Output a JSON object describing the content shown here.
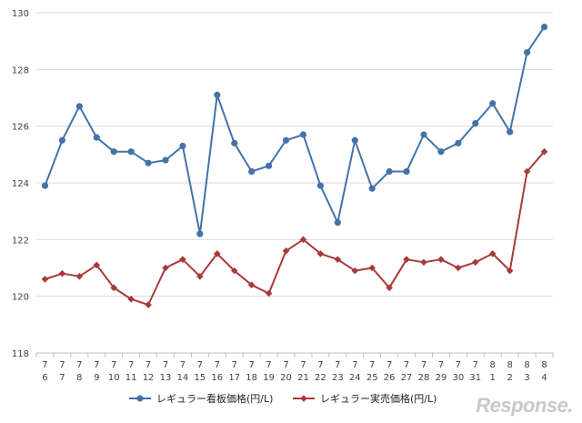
{
  "chart_data": {
    "type": "line",
    "title": "",
    "xlabel": "",
    "ylabel": "",
    "ylim": [
      118,
      130
    ],
    "yticks": [
      118,
      120,
      122,
      124,
      126,
      128,
      130
    ],
    "grid": true,
    "legend_position": "bottom",
    "categories": [
      {
        "month": "7",
        "day": "6"
      },
      {
        "month": "7",
        "day": "7"
      },
      {
        "month": "7",
        "day": "8"
      },
      {
        "month": "7",
        "day": "9"
      },
      {
        "month": "7",
        "day": "10"
      },
      {
        "month": "7",
        "day": "11"
      },
      {
        "month": "7",
        "day": "12"
      },
      {
        "month": "7",
        "day": "13"
      },
      {
        "month": "7",
        "day": "14"
      },
      {
        "month": "7",
        "day": "15"
      },
      {
        "month": "7",
        "day": "16"
      },
      {
        "month": "7",
        "day": "17"
      },
      {
        "month": "7",
        "day": "18"
      },
      {
        "month": "7",
        "day": "19"
      },
      {
        "month": "7",
        "day": "20"
      },
      {
        "month": "7",
        "day": "21"
      },
      {
        "month": "7",
        "day": "22"
      },
      {
        "month": "7",
        "day": "23"
      },
      {
        "month": "7",
        "day": "24"
      },
      {
        "month": "7",
        "day": "25"
      },
      {
        "month": "7",
        "day": "26"
      },
      {
        "month": "7",
        "day": "27"
      },
      {
        "month": "7",
        "day": "28"
      },
      {
        "month": "7",
        "day": "29"
      },
      {
        "month": "7",
        "day": "30"
      },
      {
        "month": "7",
        "day": "31"
      },
      {
        "month": "8",
        "day": "1"
      },
      {
        "month": "8",
        "day": "2"
      },
      {
        "month": "8",
        "day": "3"
      },
      {
        "month": "8",
        "day": "4"
      }
    ],
    "series": [
      {
        "name": "レギュラー看板価格(円/L)",
        "color": "#4472a8",
        "marker": "circle",
        "values": [
          123.9,
          125.5,
          126.7,
          125.6,
          125.1,
          125.1,
          124.7,
          124.8,
          125.3,
          122.2,
          127.1,
          125.4,
          124.4,
          124.6,
          125.5,
          125.7,
          123.9,
          122.6,
          125.5,
          123.8,
          124.4,
          124.4,
          125.7,
          125.1,
          125.4,
          126.1,
          126.8,
          125.8,
          128.6,
          129.5
        ]
      },
      {
        "name": "レギュラー実売価格(円/L)",
        "color": "#a83a3a",
        "marker": "diamond",
        "values": [
          120.6,
          120.8,
          120.7,
          121.1,
          120.3,
          119.9,
          119.7,
          121.0,
          121.3,
          120.7,
          121.5,
          120.9,
          120.4,
          120.1,
          121.6,
          122.0,
          121.5,
          121.3,
          120.9,
          121.0,
          120.3,
          121.3,
          121.2,
          121.3,
          121.0,
          121.2,
          121.5,
          120.9,
          124.4,
          125.1
        ]
      }
    ]
  },
  "watermark": "Response."
}
